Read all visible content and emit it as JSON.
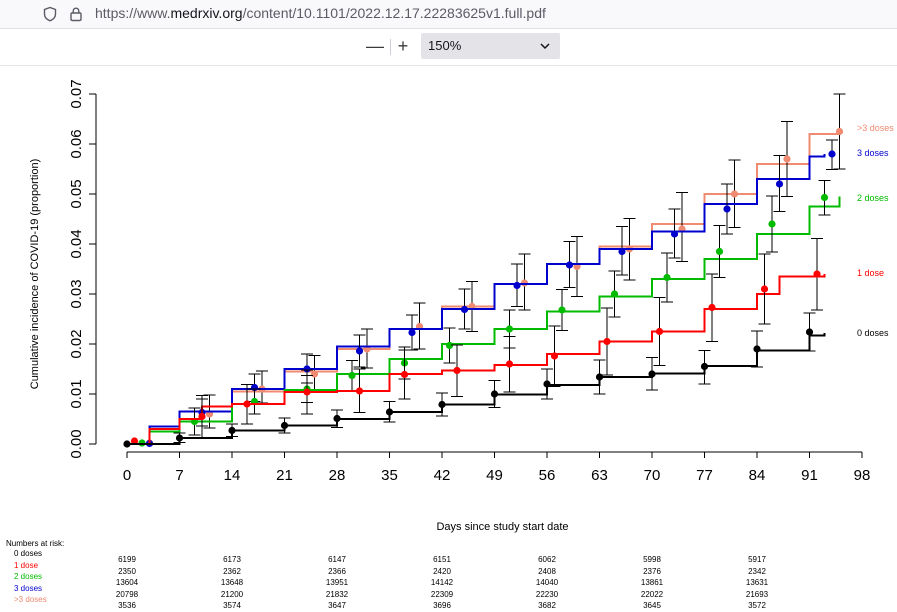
{
  "browser": {
    "url_prefix": "https://www.",
    "url_domain": "medrxiv.org",
    "url_path": "/content/10.1101/2022.12.17.22283625v1.full.pdf",
    "icons": [
      "shield-icon",
      "lock-icon"
    ]
  },
  "pdf_toolbar": {
    "zoom_out_label": "—",
    "zoom_in_label": "+",
    "zoom_value": "150%",
    "icons": [
      "chevron-down-icon"
    ]
  },
  "chart_data": {
    "type": "line",
    "title": "",
    "xlabel": "Days since study start date",
    "ylabel": "Cumulative incidence of COVID-19 (proportion)",
    "xlim": [
      0,
      98
    ],
    "ylim": [
      0,
      0.07
    ],
    "x_ticks": [
      0,
      7,
      14,
      21,
      28,
      35,
      42,
      49,
      56,
      63,
      70,
      77,
      84,
      91,
      98
    ],
    "y_ticks": [
      0.0,
      0.01,
      0.02,
      0.03,
      0.04,
      0.05,
      0.06,
      0.07
    ],
    "x_tick_labels": [
      "0",
      "7",
      "14",
      "21",
      "28",
      "35",
      "42",
      "49",
      "56",
      "63",
      "70",
      "77",
      "84",
      "91",
      "98"
    ],
    "y_tick_labels": [
      "0.00",
      "0.01",
      "0.02",
      "0.03",
      "0.04",
      "0.05",
      "0.06",
      "0.07"
    ],
    "grid": false,
    "legend": "direct labels at right end of each curve",
    "series": [
      {
        "name": "0 doses",
        "label": "0 doses",
        "color": "#000000",
        "x": [
          0,
          7,
          14,
          21,
          28,
          35,
          42,
          49,
          56,
          63,
          70,
          77,
          84,
          91,
          93
        ],
        "y": [
          0,
          0.0012,
          0.0027,
          0.0037,
          0.005,
          0.0064,
          0.0079,
          0.0099,
          0.0118,
          0.0134,
          0.0141,
          0.0156,
          0.0187,
          0.0217,
          0.0222
        ],
        "points": [
          [
            0,
            0
          ],
          [
            7,
            0.0012
          ],
          [
            14,
            0.0027
          ],
          [
            21,
            0.0037
          ],
          [
            28,
            0.0051
          ],
          [
            35,
            0.0064
          ],
          [
            42,
            0.0079
          ],
          [
            49,
            0.01
          ],
          [
            56,
            0.012
          ],
          [
            63,
            0.0134
          ],
          [
            70,
            0.014
          ],
          [
            77,
            0.0155
          ],
          [
            84,
            0.019
          ],
          [
            91,
            0.0224
          ]
        ],
        "ci": [
          [
            7,
            0.0003,
            0.0022
          ],
          [
            14,
            0.0015,
            0.004
          ],
          [
            21,
            0.0022,
            0.0052
          ],
          [
            28,
            0.0033,
            0.0068
          ],
          [
            35,
            0.0044,
            0.0085
          ],
          [
            42,
            0.0056,
            0.0102
          ],
          [
            49,
            0.0073,
            0.0127
          ],
          [
            56,
            0.009,
            0.015
          ],
          [
            63,
            0.01,
            0.0168
          ],
          [
            70,
            0.0108,
            0.0173
          ],
          [
            77,
            0.012,
            0.0187
          ],
          [
            84,
            0.0154,
            0.0226
          ],
          [
            91,
            0.0186,
            0.0262
          ]
        ]
      },
      {
        "name": "1 dose",
        "label": "1 dose",
        "color": "#ff0000",
        "x": [
          0,
          3,
          7,
          10,
          14,
          21,
          28,
          35,
          42,
          49,
          56,
          63,
          70,
          77,
          84,
          87,
          93
        ],
        "y": [
          0,
          0.003,
          0.005,
          0.0075,
          0.008,
          0.0104,
          0.0106,
          0.014,
          0.0147,
          0.0158,
          0.018,
          0.0205,
          0.0225,
          0.027,
          0.03,
          0.0335,
          0.034
        ],
        "points": [
          [
            1,
            0.0006
          ],
          [
            10,
            0.0055
          ],
          [
            16,
            0.008
          ],
          [
            24,
            0.0104
          ],
          [
            31,
            0.0106
          ],
          [
            37,
            0.0139
          ],
          [
            44,
            0.0147
          ],
          [
            51,
            0.016
          ],
          [
            57,
            0.0176
          ],
          [
            64,
            0.0205
          ],
          [
            71,
            0.0225
          ],
          [
            78,
            0.0273
          ],
          [
            85,
            0.031
          ],
          [
            92,
            0.034
          ]
        ],
        "ci": [
          [
            10,
            0.0012,
            0.0097
          ],
          [
            16,
            0.004,
            0.0119
          ],
          [
            24,
            0.006,
            0.0148
          ],
          [
            31,
            0.0063,
            0.015
          ],
          [
            37,
            0.009,
            0.0188
          ],
          [
            44,
            0.0095,
            0.0198
          ],
          [
            51,
            0.0104,
            0.0215
          ],
          [
            57,
            0.0115,
            0.0236
          ],
          [
            64,
            0.0138,
            0.0272
          ],
          [
            71,
            0.0157,
            0.0293
          ],
          [
            78,
            0.0205,
            0.034
          ],
          [
            85,
            0.024,
            0.038
          ],
          [
            92,
            0.0268,
            0.0411
          ]
        ]
      },
      {
        "name": "2 doses",
        "label": "2 doses",
        "color": "#00bb00",
        "x": [
          0,
          3,
          7,
          14,
          21,
          28,
          35,
          42,
          49,
          56,
          63,
          70,
          77,
          84,
          91,
          95
        ],
        "y": [
          0,
          0.0025,
          0.0045,
          0.008,
          0.0108,
          0.014,
          0.017,
          0.02,
          0.023,
          0.0265,
          0.0295,
          0.033,
          0.037,
          0.042,
          0.0475,
          0.0495
        ],
        "points": [
          [
            2,
            0.0002
          ],
          [
            9,
            0.0045
          ],
          [
            17,
            0.0085
          ],
          [
            24,
            0.011
          ],
          [
            30,
            0.0137
          ],
          [
            37,
            0.0162
          ],
          [
            43,
            0.0197
          ],
          [
            51,
            0.023
          ],
          [
            58,
            0.0268
          ],
          [
            65,
            0.03
          ],
          [
            72,
            0.0333
          ],
          [
            79,
            0.0385
          ],
          [
            86,
            0.044
          ],
          [
            93,
            0.0493
          ]
        ],
        "ci": [
          [
            9,
            0.0018,
            0.0072
          ],
          [
            17,
            0.006,
            0.011
          ],
          [
            24,
            0.0083,
            0.0137
          ],
          [
            30,
            0.0107,
            0.0167
          ],
          [
            37,
            0.013,
            0.0194
          ],
          [
            43,
            0.0162,
            0.0232
          ],
          [
            51,
            0.0192,
            0.0268
          ],
          [
            58,
            0.0227,
            0.0309
          ],
          [
            65,
            0.0254,
            0.0346
          ],
          [
            72,
            0.0284,
            0.0382
          ],
          [
            79,
            0.0333,
            0.0437
          ],
          [
            86,
            0.0384,
            0.0496
          ],
          [
            93,
            0.0458,
            0.0527
          ]
        ]
      },
      {
        "name": "3 doses",
        "label": "3 doses",
        "color": "#0000cc",
        "x": [
          0,
          3,
          7,
          14,
          21,
          28,
          35,
          42,
          49,
          56,
          63,
          70,
          77,
          84,
          91,
          93
        ],
        "y": [
          0,
          0.0035,
          0.0065,
          0.011,
          0.015,
          0.0195,
          0.023,
          0.027,
          0.032,
          0.036,
          0.039,
          0.0425,
          0.048,
          0.053,
          0.0575,
          0.058
        ],
        "points": [
          [
            3,
            0.0001
          ],
          [
            10,
            0.0063
          ],
          [
            17,
            0.0113
          ],
          [
            24,
            0.015
          ],
          [
            31,
            0.0186
          ],
          [
            38,
            0.0223
          ],
          [
            45,
            0.0269
          ],
          [
            52,
            0.0317
          ],
          [
            59,
            0.0358
          ],
          [
            66,
            0.0385
          ],
          [
            73,
            0.042
          ],
          [
            80,
            0.047
          ],
          [
            87,
            0.052
          ],
          [
            94,
            0.058
          ]
        ],
        "ci": [
          [
            10,
            0.0036,
            0.009
          ],
          [
            17,
            0.0085,
            0.014
          ],
          [
            24,
            0.0122,
            0.018
          ],
          [
            31,
            0.0154,
            0.0218
          ],
          [
            38,
            0.0188,
            0.0258
          ],
          [
            45,
            0.023,
            0.031
          ],
          [
            52,
            0.0275,
            0.036
          ],
          [
            59,
            0.0313,
            0.0405
          ],
          [
            66,
            0.0338,
            0.0435
          ],
          [
            73,
            0.0372,
            0.047
          ],
          [
            80,
            0.042,
            0.052
          ],
          [
            87,
            0.0465,
            0.0577
          ],
          [
            94,
            0.0549,
            0.0608
          ]
        ]
      },
      {
        "name": ">3 doses",
        "label": ">3 doses",
        "color": "#f08a70",
        "x": [
          0,
          3,
          7,
          14,
          21,
          28,
          35,
          42,
          49,
          56,
          63,
          70,
          77,
          84,
          91,
          95
        ],
        "y": [
          0,
          0.0035,
          0.0065,
          0.0105,
          0.0145,
          0.019,
          0.023,
          0.0275,
          0.032,
          0.036,
          0.0395,
          0.044,
          0.05,
          0.056,
          0.062,
          0.0625
        ],
        "points": [
          [
            3,
            0.0002
          ],
          [
            11,
            0.006
          ],
          [
            18,
            0.011
          ],
          [
            25,
            0.014
          ],
          [
            32,
            0.019
          ],
          [
            39,
            0.0235
          ],
          [
            46,
            0.0275
          ],
          [
            53,
            0.0322
          ],
          [
            60,
            0.0355
          ],
          [
            67,
            0.039
          ],
          [
            74,
            0.043
          ],
          [
            81,
            0.05
          ],
          [
            88,
            0.057
          ],
          [
            95,
            0.0625
          ]
        ],
        "ci": [
          [
            11,
            0.0032,
            0.0098
          ],
          [
            18,
            0.0082,
            0.0146
          ],
          [
            25,
            0.0107,
            0.0177
          ],
          [
            32,
            0.0152,
            0.023
          ],
          [
            39,
            0.019,
            0.0282
          ],
          [
            46,
            0.0225,
            0.0325
          ],
          [
            53,
            0.0268,
            0.038
          ],
          [
            60,
            0.0295,
            0.0415
          ],
          [
            67,
            0.0328,
            0.0451
          ],
          [
            74,
            0.0365,
            0.0503
          ],
          [
            81,
            0.0433,
            0.0568
          ],
          [
            88,
            0.0495,
            0.0645
          ],
          [
            95,
            0.055,
            0.07
          ]
        ]
      }
    ]
  },
  "numbers_at_risk": {
    "title": "Numbers at risk:",
    "rows": [
      {
        "label": "0 doses",
        "color": "#000000",
        "values": [
          "6199",
          "6173",
          "6147",
          "6151",
          "6062",
          "5998",
          "5917"
        ]
      },
      {
        "label": "1 dose",
        "color": "#ff0000",
        "values": [
          "2350",
          "2362",
          "2366",
          "2420",
          "2408",
          "2376",
          "2342"
        ]
      },
      {
        "label": "2 doses",
        "color": "#00bb00",
        "values": [
          "13604",
          "13648",
          "13951",
          "14142",
          "14040",
          "13861",
          "13631"
        ]
      },
      {
        "label": "3 doses",
        "color": "#0000cc",
        "values": [
          "20798",
          "21200",
          "21832",
          "22309",
          "22230",
          "22022",
          "21693"
        ]
      },
      {
        "label": ">3 doses",
        "color": "#f08a70",
        "values": [
          "3536",
          "3574",
          "3647",
          "3696",
          "3682",
          "3645",
          "3572"
        ]
      }
    ]
  }
}
